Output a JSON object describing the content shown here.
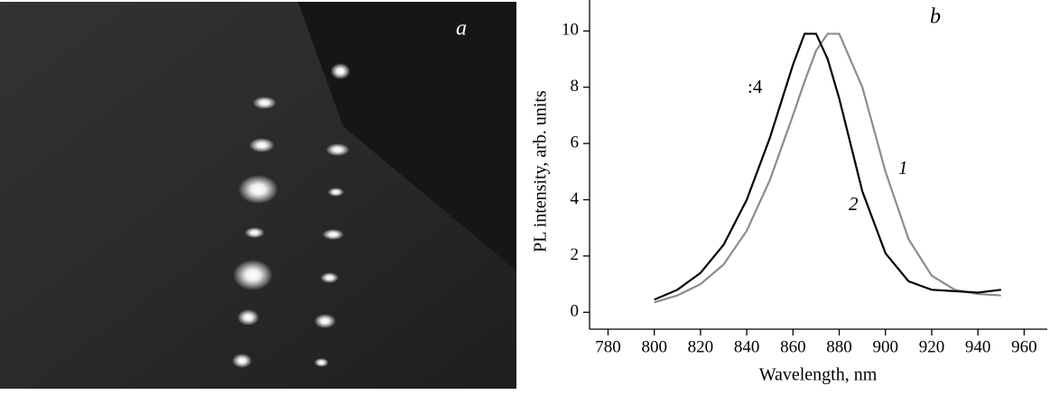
{
  "image_label": "a",
  "chart_data": {
    "type": "line",
    "panel_label": "b",
    "x_label": "Wavelength, nm",
    "y_label": "PL intensity, arb. units",
    "x": [
      800,
      810,
      820,
      830,
      840,
      850,
      860,
      865,
      870,
      875,
      880,
      890,
      900,
      910,
      920,
      930,
      940,
      950
    ],
    "series": [
      {
        "name": "1",
        "color": "#8c8c8c",
        "values": [
          0.35,
          0.6,
          1.0,
          1.7,
          2.9,
          4.7,
          7.0,
          8.2,
          9.3,
          9.9,
          9.9,
          8.0,
          5.0,
          2.6,
          1.3,
          0.8,
          0.65,
          0.6
        ]
      },
      {
        "name": "2",
        "color": "#000000",
        "values": [
          0.45,
          0.8,
          1.4,
          2.4,
          4.0,
          6.2,
          8.8,
          9.9,
          9.9,
          9.0,
          7.6,
          4.3,
          2.1,
          1.1,
          0.8,
          0.75,
          0.7,
          0.8
        ]
      }
    ],
    "annotations": [
      ":4"
    ],
    "xlim": [
      772,
      970
    ],
    "xticks": [
      780,
      800,
      820,
      840,
      860,
      880,
      900,
      920,
      940,
      960
    ],
    "ylim": [
      -0.6,
      11.1
    ],
    "yticks": [
      0,
      2,
      4,
      6,
      8,
      10
    ]
  }
}
